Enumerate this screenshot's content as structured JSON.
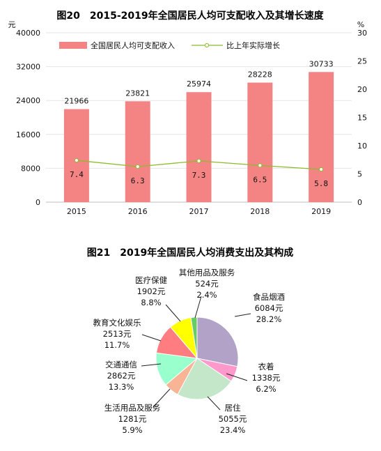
{
  "charts": [
    {
      "id": "income",
      "title": "图20　2015-2019年全国居民人均可支配收入及其增长速度",
      "type": "bar+line",
      "left_axis_unit": "元",
      "right_axis_unit": "%",
      "left_ticks": [
        "0",
        "8000",
        "16000",
        "24000",
        "32000",
        "40000"
      ],
      "right_ticks": [
        "0",
        "5",
        "10",
        "15",
        "20",
        "25",
        "30"
      ],
      "legend": [
        "全国居民人均可支配收入",
        "比上年实际增长"
      ],
      "colors": {
        "bar": "#f48484",
        "line": "#8bbb2e"
      },
      "chart_data": {
        "type": "bar",
        "categories": [
          "2015",
          "2016",
          "2017",
          "2018",
          "2019"
        ],
        "series": [
          {
            "name": "全国居民人均可支配收入",
            "values": [
              21966,
              23821,
              25974,
              28228,
              30733
            ],
            "axis": "left",
            "kind": "bar"
          },
          {
            "name": "比上年实际增长",
            "values": [
              7.4,
              6.3,
              7.3,
              6.5,
              5.8
            ],
            "axis": "right",
            "kind": "line"
          }
        ],
        "ylim_left": [
          0,
          40000
        ],
        "ylim_right": [
          0,
          30
        ]
      }
    },
    {
      "id": "consumption",
      "title": "图21　2019年全国居民人均消费支出及其构成",
      "type": "pie",
      "chart_data": {
        "type": "pie",
        "slices": [
          {
            "name": "食品烟酒",
            "value": 6084,
            "amount": "6084元",
            "percent": "28.2%",
            "color": "#b2a2c7"
          },
          {
            "name": "衣着",
            "value": 1338,
            "amount": "1338元",
            "percent": "6.2%",
            "color": "#ff99cc"
          },
          {
            "name": "居住",
            "value": 5055,
            "amount": "5055元",
            "percent": "23.4%",
            "color": "#c4e6c9"
          },
          {
            "name": "生活用品及服务",
            "value": 1281,
            "amount": "1281元",
            "percent": "5.9%",
            "color": "#f9b395"
          },
          {
            "name": "交通通信",
            "value": 2862,
            "amount": "2862元",
            "percent": "13.3%",
            "color": "#99ffcc"
          },
          {
            "name": "教育文化娱乐",
            "value": 2513,
            "amount": "2513元",
            "percent": "11.7%",
            "color": "#ff7c80"
          },
          {
            "name": "医疗保健",
            "value": 1902,
            "amount": "1902元",
            "percent": "8.8%",
            "color": "#ffff00"
          },
          {
            "name": "其他用品及服务",
            "value": 524,
            "amount": "524元",
            "percent": "2.4%",
            "color": "#66cc66"
          }
        ]
      }
    }
  ]
}
